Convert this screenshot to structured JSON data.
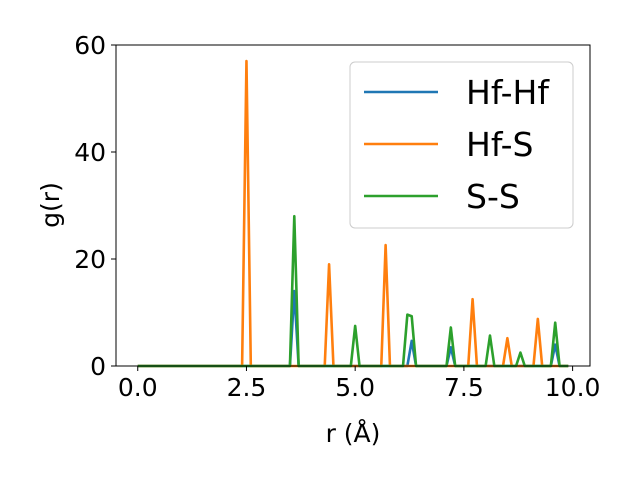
{
  "chart_data": {
    "type": "line",
    "title": "",
    "xlabel": "r (Å)",
    "ylabel": "g(r)",
    "xlim": [
      -0.5,
      10.4
    ],
    "ylim": [
      0,
      60
    ],
    "xticks": [
      0.0,
      2.5,
      5.0,
      7.5,
      10.0
    ],
    "xtick_labels": [
      "0.0",
      "2.5",
      "5.0",
      "7.5",
      "10.0"
    ],
    "yticks": [
      0,
      20,
      40,
      60
    ],
    "ytick_labels": [
      "0",
      "20",
      "40",
      "60"
    ],
    "grid": false,
    "legend_position": "upper right",
    "series": [
      {
        "name": "Hf-Hf",
        "color": "#1f77b4",
        "points": [
          [
            0,
            0
          ],
          [
            3.4,
            0
          ],
          [
            3.5,
            0
          ],
          [
            3.6,
            14
          ],
          [
            3.7,
            0
          ],
          [
            6.2,
            0
          ],
          [
            6.3,
            4.7
          ],
          [
            6.4,
            0
          ],
          [
            7.1,
            0
          ],
          [
            7.2,
            3.5
          ],
          [
            7.3,
            0
          ],
          [
            9.5,
            0
          ],
          [
            9.6,
            4
          ],
          [
            9.7,
            0
          ],
          [
            9.9,
            0
          ]
        ]
      },
      {
        "name": "Hf-S",
        "color": "#ff7f0e",
        "points": [
          [
            0,
            0
          ],
          [
            2.4,
            0
          ],
          [
            2.5,
            57
          ],
          [
            2.6,
            0
          ],
          [
            4.3,
            0
          ],
          [
            4.4,
            19
          ],
          [
            4.5,
            0
          ],
          [
            5.6,
            0
          ],
          [
            5.7,
            22.6
          ],
          [
            5.8,
            0
          ],
          [
            7.6,
            0
          ],
          [
            7.7,
            12.5
          ],
          [
            7.8,
            0
          ],
          [
            8.4,
            0
          ],
          [
            8.5,
            5.2
          ],
          [
            8.6,
            0
          ],
          [
            9.1,
            0
          ],
          [
            9.2,
            8.8
          ],
          [
            9.3,
            0
          ],
          [
            9.9,
            0
          ]
        ]
      },
      {
        "name": "S-S",
        "color": "#2ca02c",
        "points": [
          [
            0,
            0
          ],
          [
            3.5,
            0
          ],
          [
            3.6,
            28
          ],
          [
            3.7,
            0
          ],
          [
            4.9,
            0
          ],
          [
            5.0,
            7.5
          ],
          [
            5.1,
            0
          ],
          [
            6.1,
            0
          ],
          [
            6.2,
            9.6
          ],
          [
            6.3,
            9.3
          ],
          [
            6.4,
            0
          ],
          [
            7.1,
            0
          ],
          [
            7.2,
            7.2
          ],
          [
            7.3,
            0
          ],
          [
            8.0,
            0
          ],
          [
            8.1,
            5.7
          ],
          [
            8.2,
            0
          ],
          [
            8.7,
            0
          ],
          [
            8.8,
            2.5
          ],
          [
            8.9,
            0
          ],
          [
            9.5,
            0
          ],
          [
            9.6,
            8.1
          ],
          [
            9.7,
            0
          ],
          [
            9.9,
            0
          ]
        ]
      }
    ]
  }
}
